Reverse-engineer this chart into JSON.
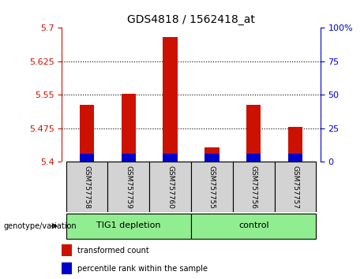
{
  "title": "GDS4818 / 1562418_at",
  "samples": [
    "GSM757758",
    "GSM757759",
    "GSM757760",
    "GSM757755",
    "GSM757756",
    "GSM757757"
  ],
  "bar_bottom": 5.4,
  "bar_tops": [
    5.527,
    5.553,
    5.68,
    5.432,
    5.527,
    5.478
  ],
  "blue_segment_top": [
    5.418,
    5.418,
    5.418,
    5.418,
    5.418,
    5.418
  ],
  "ylim_left": [
    5.4,
    5.7
  ],
  "yticks_left": [
    5.4,
    5.475,
    5.55,
    5.625,
    5.7
  ],
  "ytick_labels_left": [
    "5.4",
    "5.475",
    "5.55",
    "5.625",
    "5.7"
  ],
  "yticks_right": [
    0,
    25,
    50,
    75,
    100
  ],
  "ytick_labels_right": [
    "0",
    "25",
    "50",
    "75",
    "100%"
  ],
  "groups": [
    {
      "label": "TIG1 depletion",
      "indices": [
        0,
        1,
        2
      ],
      "color": "#90EE90"
    },
    {
      "label": "control",
      "indices": [
        3,
        4,
        5
      ],
      "color": "#90EE90"
    }
  ],
  "bar_color_red": "#CC1100",
  "bar_color_blue": "#0000CC",
  "bar_width": 0.35,
  "left_axis_color": "#CC1100",
  "right_axis_color": "#0000CC",
  "grid_color": "black",
  "sample_area_color": "#D3D3D3",
  "group_label": "genotype/variation",
  "legend_red_label": "transformed count",
  "legend_blue_label": "percentile rank within the sample",
  "figure_width": 4.61,
  "figure_height": 3.54,
  "dpi": 100
}
